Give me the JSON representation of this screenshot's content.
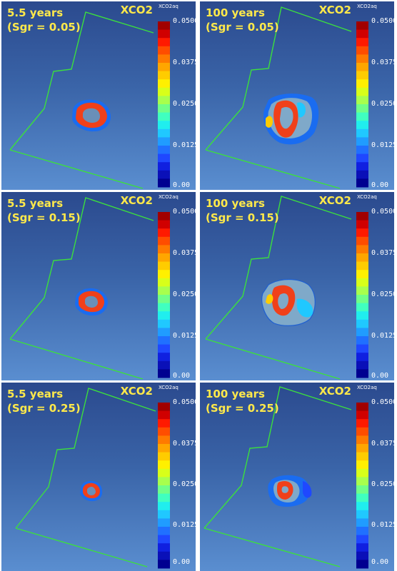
{
  "colorbar": {
    "title": "XCO2aq",
    "ticks": [
      "0.0500",
      "0.0375",
      "0.0250",
      "0.0125",
      "0.00"
    ],
    "tick_values": [
      0.05,
      0.0375,
      0.025,
      0.0125,
      0.0
    ],
    "colors": [
      "#a00000",
      "#d00000",
      "#ff1a00",
      "#ff4d00",
      "#ff7a00",
      "#ffa600",
      "#ffcc00",
      "#fff000",
      "#d8ff1a",
      "#a8ff4d",
      "#70ff88",
      "#40ffc0",
      "#20eeee",
      "#20c8ff",
      "#209cff",
      "#2070ff",
      "#1f48ff",
      "#1020e0",
      "#0a10b8",
      "#000090"
    ]
  },
  "panels": [
    {
      "id": "p1",
      "time": "5.5 years",
      "sgr": "(Sgr = 0.05)",
      "variable": "XCO2",
      "plume": "small"
    },
    {
      "id": "p2",
      "time": "100 years",
      "sgr": "(Sgr = 0.05)",
      "variable": "XCO2",
      "plume": "spread"
    },
    {
      "id": "p3",
      "time": "5.5 years",
      "sgr": "(Sgr = 0.15)",
      "variable": "XCO2",
      "plume": "small"
    },
    {
      "id": "p4",
      "time": "100 years",
      "sgr": "(Sgr = 0.15)",
      "variable": "XCO2",
      "plume": "spread"
    },
    {
      "id": "p5",
      "time": "5.5 years",
      "sgr": "(Sgr = 0.25)",
      "variable": "XCO2",
      "plume": "small"
    },
    {
      "id": "p6",
      "time": "100 years",
      "sgr": "(Sgr = 0.25)",
      "variable": "XCO2",
      "plume": "spread"
    }
  ]
}
